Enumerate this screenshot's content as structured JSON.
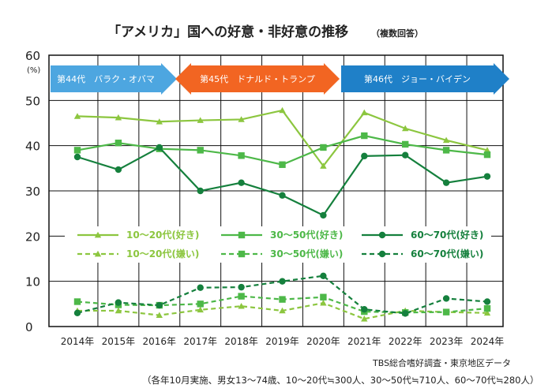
{
  "chart_data": {
    "type": "line",
    "title": "「アメリカ」国への好意・非好意の推移",
    "subtitle": "（複数回答）",
    "ylabel": "(%)",
    "xlabel": "",
    "ylim": [
      0,
      60
    ],
    "yticks": [
      "0",
      "10",
      "20",
      "30",
      "40",
      "50",
      "60"
    ],
    "grid": true,
    "legend_position": "center-left",
    "categories": [
      "2014年",
      "2015年",
      "2016年",
      "2017年",
      "2018年",
      "2019年",
      "2020年",
      "2021年",
      "2022年",
      "2023年",
      "2024年"
    ],
    "eras": [
      {
        "label": "第44代　バラク・オバマ",
        "color": "#4da6e0"
      },
      {
        "label": "第45代　ドナルド・トランプ",
        "color": "#f26522"
      },
      {
        "label": "第46代　ジョー・バイデン",
        "color": "#1f80c8"
      }
    ],
    "series": [
      {
        "name": "10～20代(好き)",
        "color": "#8cc63f",
        "dash": false,
        "marker": "triangle",
        "values": [
          46.5,
          46.2,
          45.3,
          45.6,
          45.8,
          47.8,
          35.5,
          47.3,
          43.8,
          41.2,
          39.0
        ]
      },
      {
        "name": "30～50代(好き)",
        "color": "#4db848",
        "dash": false,
        "marker": "square",
        "values": [
          39.0,
          40.6,
          39.3,
          39.0,
          37.8,
          35.8,
          39.6,
          42.2,
          40.3,
          39.0,
          38.0
        ]
      },
      {
        "name": "60～70代(好き)",
        "color": "#15803d",
        "dash": false,
        "marker": "circle",
        "values": [
          37.5,
          34.7,
          39.6,
          30.0,
          31.8,
          29.0,
          24.6,
          37.7,
          37.9,
          31.8,
          33.2
        ]
      },
      {
        "name": "10～20代(嫌い)",
        "color": "#8cc63f",
        "dash": true,
        "marker": "triangle",
        "values": [
          3.5,
          3.5,
          2.5,
          3.7,
          4.5,
          3.5,
          5.2,
          1.7,
          3.5,
          3.2,
          3.0
        ]
      },
      {
        "name": "30～50代(嫌い)",
        "color": "#4db848",
        "dash": true,
        "marker": "square",
        "values": [
          5.5,
          4.8,
          4.7,
          5.0,
          6.7,
          6.0,
          6.5,
          3.3,
          3.1,
          3.2,
          4.0
        ]
      },
      {
        "name": "60～70代(嫌い)",
        "color": "#15803d",
        "dash": true,
        "marker": "circle",
        "values": [
          3.0,
          5.3,
          4.7,
          8.6,
          8.7,
          10.0,
          11.2,
          3.8,
          2.9,
          6.2,
          5.5
        ]
      }
    ]
  },
  "footer": {
    "source": "TBS総合嗜好調査・東京地区データ",
    "note": "（各年10月実施、男女13～74歳、10～20代≒300人、30～50代≒710人、60～70代≒280人）"
  }
}
